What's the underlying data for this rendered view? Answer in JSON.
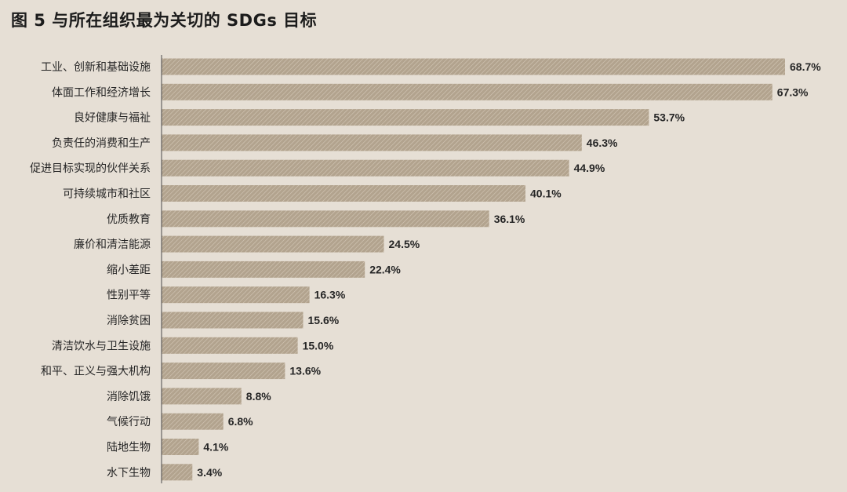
{
  "colors": {
    "background": "#e6dfd5",
    "bar": "#b2a38e",
    "bar_hatch": "#d4c9b8",
    "axis": "#4a4a4a",
    "text": "#262626"
  },
  "chart_data": {
    "type": "bar",
    "orientation": "horizontal",
    "title": "图 5  与所在组织最为关切的 SDGs 目标",
    "xlabel": "",
    "ylabel": "",
    "xlim": [
      0,
      70
    ],
    "grid": false,
    "legend": "none",
    "categories": [
      "工业、创新和基础设施",
      "体面工作和经济增长",
      "良好健康与福祉",
      "负责任的消费和生产",
      "促进目标实现的伙伴关系",
      "可持续城市和社区",
      "优质教育",
      "廉价和清洁能源",
      "缩小差距",
      "性别平等",
      "消除贫困",
      "清洁饮水与卫生设施",
      "和平、正义与强大机构",
      "消除饥饿",
      "气候行动",
      "陆地生物",
      "水下生物"
    ],
    "values": [
      68.7,
      67.3,
      53.7,
      46.3,
      44.9,
      40.1,
      36.1,
      24.5,
      22.4,
      16.3,
      15.6,
      15.0,
      13.6,
      8.8,
      6.8,
      4.1,
      3.4
    ],
    "value_labels": [
      "68.7%",
      "67.3%",
      "53.7%",
      "46.3%",
      "44.9%",
      "40.1%",
      "36.1%",
      "24.5%",
      "22.4%",
      "16.3%",
      "15.6%",
      "15.0%",
      "13.6%",
      "8.8%",
      "6.8%",
      "4.1%",
      "3.4%"
    ]
  }
}
